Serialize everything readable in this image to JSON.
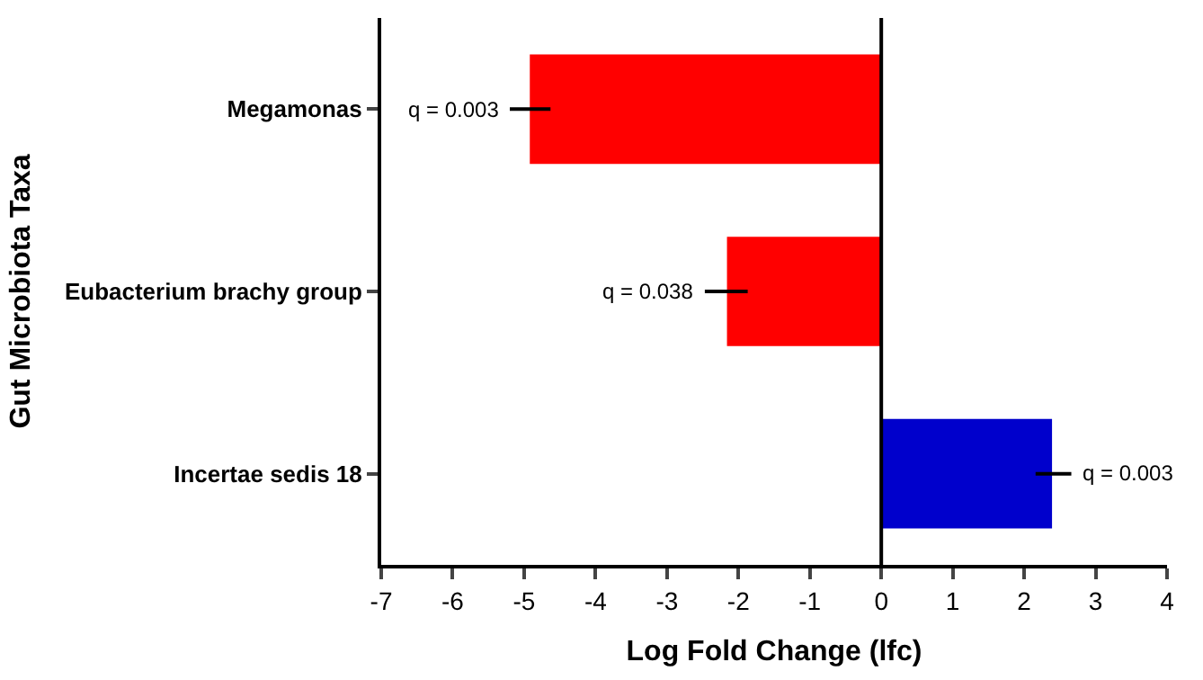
{
  "chart_data": {
    "type": "bar",
    "orientation": "horizontal",
    "xlabel": "Log Fold Change (lfc)",
    "ylabel": "Gut Microbiota Taxa",
    "categories": [
      "Megamonas",
      "Eubacterium brachy group",
      "Incertae sedis 18"
    ],
    "values": [
      -4.92,
      -2.16,
      2.39
    ],
    "colors": [
      "#ff0000",
      "#ff0000",
      "#0000cc"
    ],
    "errors": [
      [
        -5.2,
        -4.63
      ],
      [
        -2.47,
        -1.87
      ],
      [
        2.16,
        2.66
      ]
    ],
    "xlim": [
      -7,
      4
    ],
    "xticks": [
      -7,
      -6,
      -5,
      -4,
      -3,
      -2,
      -1,
      0,
      1,
      2,
      3,
      4
    ],
    "ref_lines": [
      {
        "axis": "x",
        "value": 0
      }
    ],
    "annotations": [
      {
        "text": "q = 0.003",
        "x": -5.2,
        "y": "Megamonas"
      },
      {
        "text": "q = 0.038",
        "x": -2.47,
        "y": "Eubacterium brachy group"
      },
      {
        "text": "q = 0.003",
        "x": 2.66,
        "y": "Incertae sedis 18"
      }
    ]
  }
}
